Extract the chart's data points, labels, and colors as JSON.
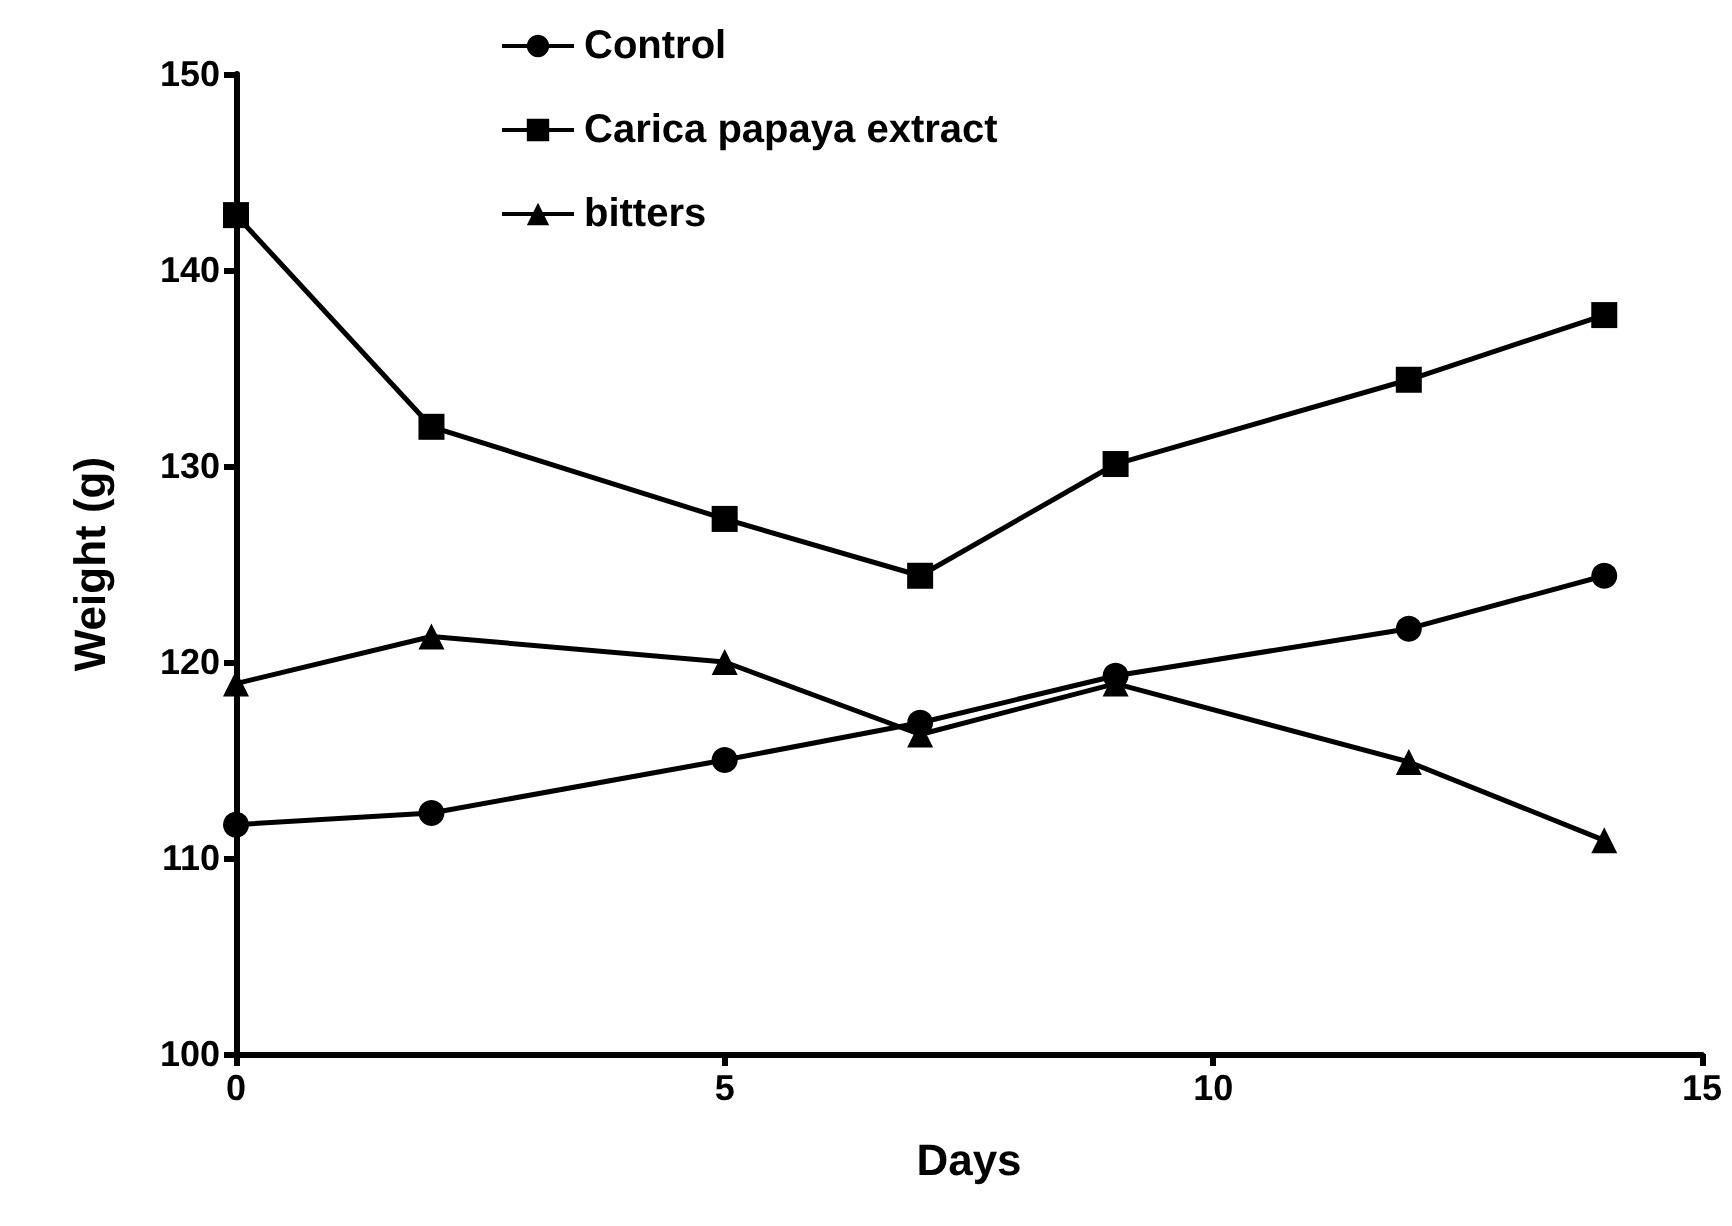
{
  "chart_data": {
    "type": "line",
    "xlabel": "Days",
    "ylabel": "Weight (g)",
    "xlim": [
      0,
      15
    ],
    "xticks": [
      0,
      5,
      10,
      15
    ],
    "ylim": [
      100,
      150
    ],
    "yticks": [
      100,
      110,
      120,
      130,
      140,
      150
    ],
    "grid": false,
    "legend": "top",
    "line_style": "solid",
    "series": [
      {
        "name": "Control",
        "color": "#000000",
        "marker": "circle",
        "x": [
          0,
          2,
          5,
          7,
          9,
          12,
          14
        ],
        "values": [
          111.7,
          112.3,
          115,
          116.9,
          119.3,
          121.7,
          124.4
        ]
      },
      {
        "name": "Carica papaya extract",
        "color": "#000000",
        "marker": "square",
        "x": [
          0,
          2,
          5,
          7,
          9,
          12,
          14
        ],
        "values": [
          142.8,
          132,
          127.3,
          124.4,
          130.1,
          134.4,
          137.7
        ]
      },
      {
        "name": "bitters",
        "color": "#000000",
        "marker": "triangle",
        "x": [
          0,
          2,
          5,
          7,
          9,
          12,
          14
        ],
        "values": [
          118.9,
          121.3,
          120,
          116.3,
          118.9,
          114.9,
          110.9
        ]
      }
    ]
  }
}
